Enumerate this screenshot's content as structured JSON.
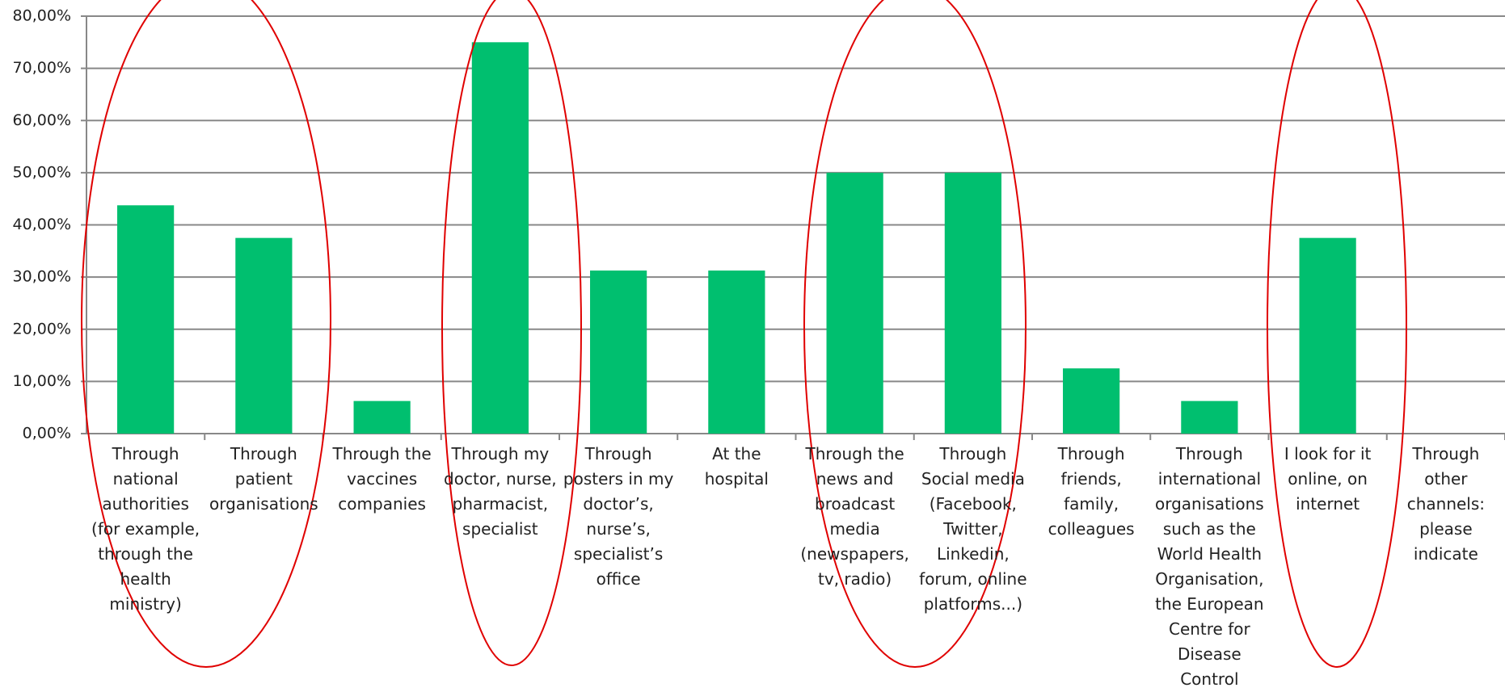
{
  "chart_data": {
    "type": "bar",
    "categories": [
      "Through national authorities (for example, through the health ministry)",
      "Through patient organisations",
      "Through the vaccines companies",
      "Through my doctor, nurse, pharmacist, specialist",
      "Through posters in my doctor’s, nurse’s, specialist’s office",
      "At the hospital",
      "Through the news and broadcast media (newspapers, tv, radio)",
      "Through Social media (Facebook, Twitter, Linkedin, forum, online platforms...)",
      "Through friends, family, colleagues",
      "Through international organisations such as the World Health Organisation, the European Centre for Disease Control",
      "I look for it online, on internet",
      "Through other channels: please indicate"
    ],
    "values": [
      43.75,
      37.5,
      6.25,
      75,
      31.25,
      31.25,
      50,
      50,
      12.5,
      6.25,
      37.5,
      0
    ],
    "color": "#00bf6f",
    "ylim": [
      0,
      80
    ],
    "yticks": [
      {
        "value": 0,
        "label": "0,00%"
      },
      {
        "value": 10,
        "label": "10,00%"
      },
      {
        "value": 20,
        "label": "20,00%"
      },
      {
        "value": 30,
        "label": "30,00%"
      },
      {
        "value": 40,
        "label": "40,00%"
      },
      {
        "value": 50,
        "label": "50,00%"
      },
      {
        "value": 60,
        "label": "60,00%"
      },
      {
        "value": 70,
        "label": "70,00%"
      },
      {
        "value": 80,
        "label": "80,00%"
      }
    ],
    "grid": true
  }
}
